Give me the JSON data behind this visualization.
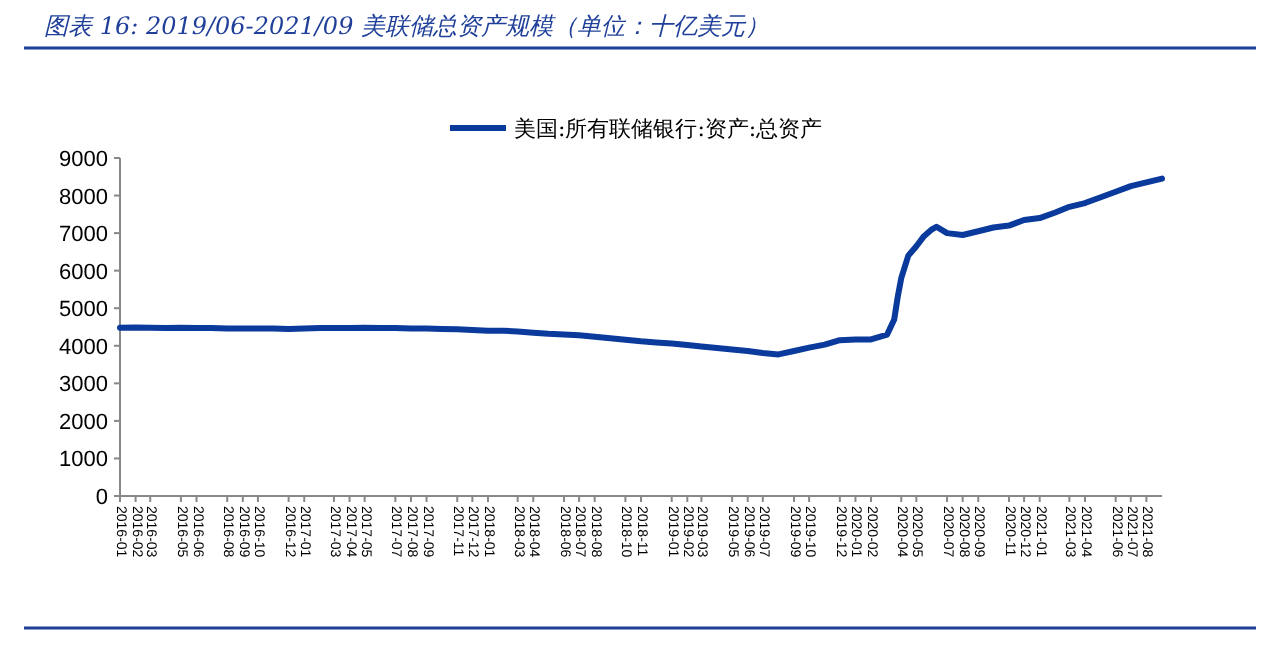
{
  "chart_data": {
    "type": "line",
    "title": "图表 16:  2019/06-2021/09 美联储总资产规模（单位：十亿美元）",
    "x": [
      "2016-01-01",
      "2016-02-01",
      "2016-03-01",
      "2016-04-01",
      "2016-05-01",
      "2016-06-01",
      "2016-07-01",
      "2016-08-01",
      "2016-09-01",
      "2016-10-01",
      "2016-11-01",
      "2016-12-01",
      "2017-01-01",
      "2017-02-01",
      "2017-03-01",
      "2017-04-01",
      "2017-05-01",
      "2017-06-01",
      "2017-07-01",
      "2017-08-01",
      "2017-09-01",
      "2017-10-01",
      "2017-11-01",
      "2017-12-01",
      "2018-01-01",
      "2018-02-01",
      "2018-03-01",
      "2018-04-01",
      "2018-05-01",
      "2018-06-01",
      "2018-07-01",
      "2018-08-01",
      "2018-09-01",
      "2018-10-01",
      "2018-11-01",
      "2018-12-01",
      "2019-01-01",
      "2019-02-01",
      "2019-03-01",
      "2019-04-01",
      "2019-05-01",
      "2019-06-01",
      "2019-07-01",
      "2019-08-01",
      "2019-09-01",
      "2019-10-01",
      "2019-11-01",
      "2019-12-01",
      "2020-01-01",
      "2020-02-01",
      "2020-03-04",
      "2020-03-18",
      "2020-03-25",
      "2020-04-01",
      "2020-04-15",
      "2020-05-01",
      "2020-05-15",
      "2020-06-01",
      "2020-06-10",
      "2020-07-01",
      "2020-08-01",
      "2020-09-01",
      "2020-10-01",
      "2020-11-01",
      "2020-12-01",
      "2021-01-01",
      "2021-02-01",
      "2021-03-01",
      "2021-04-01",
      "2021-05-01",
      "2021-06-01",
      "2021-07-01",
      "2021-08-01",
      "2021-09-01"
    ],
    "series": [
      {
        "name": "美国:所有联储银行:资产:总资产",
        "color": "#0a3a9c",
        "values": [
          4480,
          4490,
          4480,
          4470,
          4480,
          4470,
          4470,
          4460,
          4460,
          4460,
          4460,
          4450,
          4460,
          4470,
          4470,
          4470,
          4480,
          4470,
          4470,
          4460,
          4460,
          4450,
          4440,
          4420,
          4400,
          4400,
          4380,
          4350,
          4320,
          4300,
          4280,
          4240,
          4200,
          4160,
          4120,
          4090,
          4060,
          4020,
          3980,
          3940,
          3900,
          3860,
          3810,
          3770,
          3860,
          3950,
          4030,
          4150,
          4170,
          4170,
          4300,
          4700,
          5300,
          5800,
          6400,
          6650,
          6900,
          7100,
          7170,
          7000,
          6950,
          7050,
          7150,
          7200,
          7350,
          7400,
          7550,
          7700,
          7800,
          7950,
          8100,
          8250,
          8350,
          8450
        ]
      }
    ],
    "xlim": [
      "2016-01-01",
      "2021-09-01"
    ],
    "xticks": [
      {
        "value": "2016-01-01",
        "label": "2016-01"
      },
      {
        "value": "2016-02-01",
        "label": "2016-02"
      },
      {
        "value": "2016-03-01",
        "label": "2016-03"
      },
      {
        "value": "2016-05-01",
        "label": "2016-05"
      },
      {
        "value": "2016-06-01",
        "label": "2016-06"
      },
      {
        "value": "2016-08-01",
        "label": "2016-08"
      },
      {
        "value": "2016-09-01",
        "label": "2016-09"
      },
      {
        "value": "2016-10-01",
        "label": "2016-10"
      },
      {
        "value": "2016-12-01",
        "label": "2016-12"
      },
      {
        "value": "2017-01-01",
        "label": "2017-01"
      },
      {
        "value": "2017-03-01",
        "label": "2017-03"
      },
      {
        "value": "2017-04-01",
        "label": "2017-04"
      },
      {
        "value": "2017-05-01",
        "label": "2017-05"
      },
      {
        "value": "2017-07-01",
        "label": "2017-07"
      },
      {
        "value": "2017-08-01",
        "label": "2017-08"
      },
      {
        "value": "2017-09-01",
        "label": "2017-09"
      },
      {
        "value": "2017-11-01",
        "label": "2017-11"
      },
      {
        "value": "2017-12-01",
        "label": "2017-12"
      },
      {
        "value": "2018-01-01",
        "label": "2018-01"
      },
      {
        "value": "2018-03-01",
        "label": "2018-03"
      },
      {
        "value": "2018-04-01",
        "label": "2018-04"
      },
      {
        "value": "2018-06-01",
        "label": "2018-06"
      },
      {
        "value": "2018-07-01",
        "label": "2018-07"
      },
      {
        "value": "2018-08-01",
        "label": "2018-08"
      },
      {
        "value": "2018-10-01",
        "label": "2018-10"
      },
      {
        "value": "2018-11-01",
        "label": "2018-11"
      },
      {
        "value": "2019-01-01",
        "label": "2019-01"
      },
      {
        "value": "2019-02-01",
        "label": "2019-02"
      },
      {
        "value": "2019-03-01",
        "label": "2019-03"
      },
      {
        "value": "2019-05-01",
        "label": "2019-05"
      },
      {
        "value": "2019-06-01",
        "label": "2019-06"
      },
      {
        "value": "2019-07-01",
        "label": "2019-07"
      },
      {
        "value": "2019-09-01",
        "label": "2019-09"
      },
      {
        "value": "2019-10-01",
        "label": "2019-10"
      },
      {
        "value": "2019-12-01",
        "label": "2019-12"
      },
      {
        "value": "2020-01-01",
        "label": "2020-01"
      },
      {
        "value": "2020-02-01",
        "label": "2020-02"
      },
      {
        "value": "2020-04-01",
        "label": "2020-04"
      },
      {
        "value": "2020-05-01",
        "label": "2020-05"
      },
      {
        "value": "2020-07-01",
        "label": "2020-07"
      },
      {
        "value": "2020-08-01",
        "label": "2020-08"
      },
      {
        "value": "2020-09-01",
        "label": "2020-09"
      },
      {
        "value": "2020-11-01",
        "label": "2020-11"
      },
      {
        "value": "2020-12-01",
        "label": "2020-12"
      },
      {
        "value": "2021-01-01",
        "label": "2021-01"
      },
      {
        "value": "2021-03-01",
        "label": "2021-03"
      },
      {
        "value": "2021-04-01",
        "label": "2021-04"
      },
      {
        "value": "2021-06-01",
        "label": "2021-06"
      },
      {
        "value": "2021-07-01",
        "label": "2021-07"
      },
      {
        "value": "2021-08-01",
        "label": "2021-08"
      }
    ],
    "ylim": [
      0,
      9000
    ],
    "yticks": [
      0,
      1000,
      2000,
      3000,
      4000,
      5000,
      6000,
      7000,
      8000,
      9000
    ],
    "legend": "top",
    "grid": false
  }
}
